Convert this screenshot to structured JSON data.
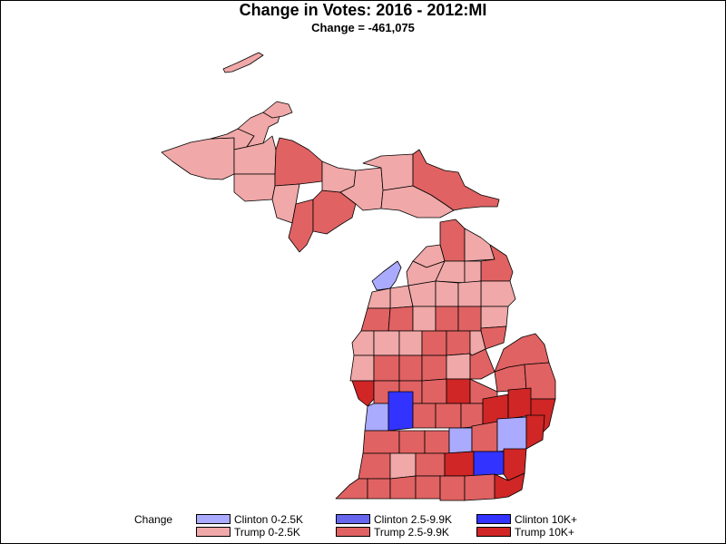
{
  "title": "Change in Votes: 2016 - 2012:MI",
  "subtitle": "Change = -461,075",
  "legend": {
    "title": "Change",
    "items": [
      {
        "label": "Clinton 0-2.5K",
        "color": "#aaaaff"
      },
      {
        "label": "Clinton 2.5-9.9K",
        "color": "#6666ee"
      },
      {
        "label": "Clinton 10K+",
        "color": "#3333ff"
      },
      {
        "label": "Trump 0-2.5K",
        "color": "#f0a8a8"
      },
      {
        "label": "Trump 2.5-9.9K",
        "color": "#e06262"
      },
      {
        "label": "Trump 10K+",
        "color": "#d02626"
      }
    ]
  }
}
